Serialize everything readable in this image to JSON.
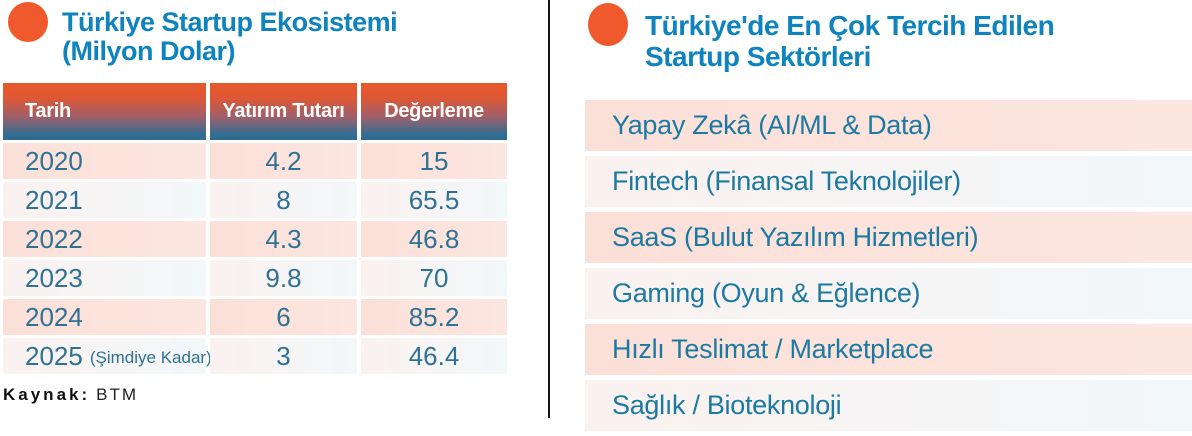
{
  "colors": {
    "accent_orange": "#F0592B",
    "title_blue": "#0F83BE",
    "header_gradient_top": "#E6582C",
    "header_gradient_bottom": "#2E6C93",
    "row_pink": "#FBE3DC",
    "row_light": "#F4F8FA",
    "table_text": "#2F7195",
    "list_text": "#1C7AA2",
    "divider": "#141414"
  },
  "left_panel": {
    "title_line1": "Türkiye Startup Ekosistemi",
    "title_line2": "(Milyon Dolar)",
    "table": {
      "headers": [
        "Tarih",
        "Yatırım Tutarı",
        "Değerleme"
      ],
      "rows": [
        {
          "year": "2020",
          "note": "",
          "investment": "4.2",
          "valuation": "15"
        },
        {
          "year": "2021",
          "note": "",
          "investment": "8",
          "valuation": "65.5"
        },
        {
          "year": "2022",
          "note": "",
          "investment": "4.3",
          "valuation": "46.8"
        },
        {
          "year": "2023",
          "note": "",
          "investment": "9.8",
          "valuation": "70"
        },
        {
          "year": "2024",
          "note": "",
          "investment": "6",
          "valuation": "85.2"
        },
        {
          "year": "2025",
          "note": "(Şimdiye Kadar)",
          "investment": "3",
          "valuation": "46.4"
        }
      ]
    },
    "source_label": "Kaynak:",
    "source_value": "BTM"
  },
  "right_panel": {
    "title_line1": "Türkiye'de En Çok Tercih Edilen",
    "title_line2": "Startup Sektörleri",
    "sectors": [
      "Yapay Zekâ (AI/ML & Data)",
      "Fintech (Finansal Teknolojiler)",
      "SaaS (Bulut Yazılım Hizmetleri)",
      "Gaming (Oyun & Eğlence)",
      "Hızlı Teslimat / Marketplace",
      "Sağlık / Bioteknoloji"
    ]
  },
  "chart_data": {
    "type": "table",
    "title": "Türkiye Startup Ekosistemi (Milyon Dolar)",
    "columns": [
      "Tarih",
      "Yatırım Tutarı",
      "Değerleme"
    ],
    "rows": [
      [
        "2020",
        4.2,
        15
      ],
      [
        "2021",
        8,
        65.5
      ],
      [
        "2022",
        4.3,
        46.8
      ],
      [
        "2023",
        9.8,
        70
      ],
      [
        "2024",
        6,
        85.2
      ],
      [
        "2025 (Şimdiye Kadar)",
        3,
        46.4
      ]
    ],
    "source": "BTM",
    "companion_list_title": "Türkiye'de En Çok Tercih Edilen Startup Sektörleri",
    "companion_list": [
      "Yapay Zekâ (AI/ML & Data)",
      "Fintech (Finansal Teknolojiler)",
      "SaaS (Bulut Yazılım Hizmetleri)",
      "Gaming (Oyun & Eğlence)",
      "Hızlı Teslimat / Marketplace",
      "Sağlık / Bioteknoloji"
    ]
  }
}
